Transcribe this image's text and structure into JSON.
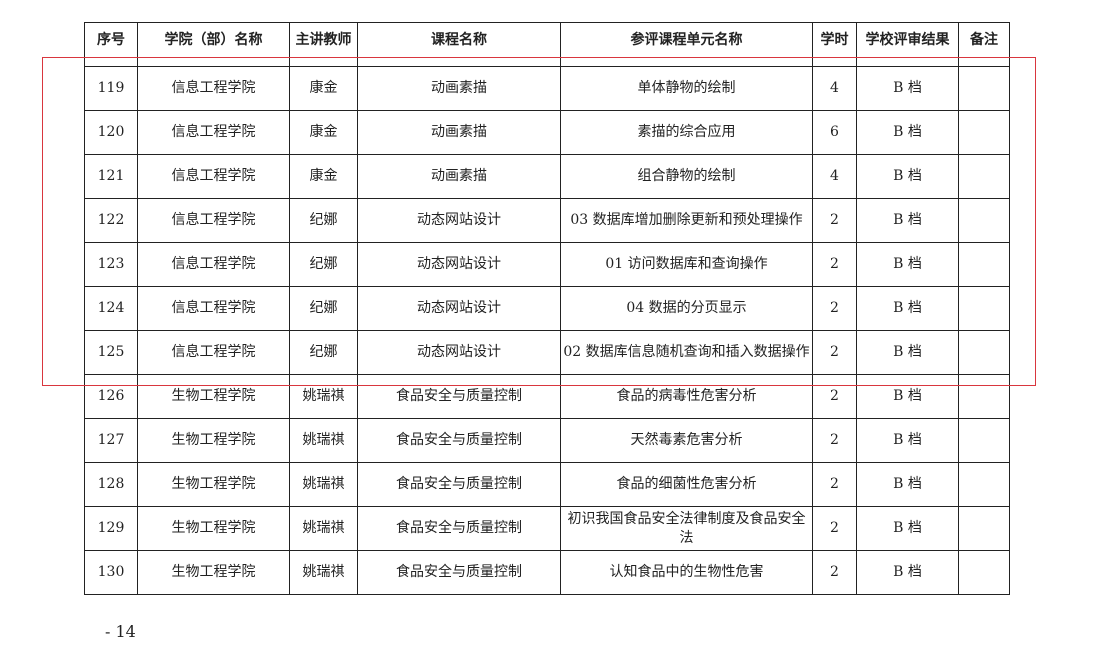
{
  "headers": [
    "序号",
    "学院（部）名称",
    "主讲教师",
    "课程名称",
    "参评课程单元名称",
    "学时",
    "学校评审结果",
    "备注"
  ],
  "rows": [
    [
      "119",
      "信息工程学院",
      "康金",
      "动画素描",
      "单体静物的绘制",
      "4",
      "B 档",
      ""
    ],
    [
      "120",
      "信息工程学院",
      "康金",
      "动画素描",
      "素描的综合应用",
      "6",
      "B 档",
      ""
    ],
    [
      "121",
      "信息工程学院",
      "康金",
      "动画素描",
      "组合静物的绘制",
      "4",
      "B 档",
      ""
    ],
    [
      "122",
      "信息工程学院",
      "纪娜",
      "动态网站设计",
      "03 数据库增加删除更新和预处理操作",
      "2",
      "B 档",
      ""
    ],
    [
      "123",
      "信息工程学院",
      "纪娜",
      "动态网站设计",
      "01 访问数据库和查询操作",
      "2",
      "B 档",
      ""
    ],
    [
      "124",
      "信息工程学院",
      "纪娜",
      "动态网站设计",
      "04 数据的分页显示",
      "2",
      "B 档",
      ""
    ],
    [
      "125",
      "信息工程学院",
      "纪娜",
      "动态网站设计",
      "02 数据库信息随机查询和插入数据操作",
      "2",
      "B 档",
      ""
    ],
    [
      "126",
      "生物工程学院",
      "姚瑞祺",
      "食品安全与质量控制",
      "食品的病毒性危害分析",
      "2",
      "B 档",
      ""
    ],
    [
      "127",
      "生物工程学院",
      "姚瑞祺",
      "食品安全与质量控制",
      "天然毒素危害分析",
      "2",
      "B 档",
      ""
    ],
    [
      "128",
      "生物工程学院",
      "姚瑞祺",
      "食品安全与质量控制",
      "食品的细菌性危害分析",
      "2",
      "B 档",
      ""
    ],
    [
      "129",
      "生物工程学院",
      "姚瑞祺",
      "食品安全与质量控制",
      "初识我国食品安全法律制度及食品安全法",
      "2",
      "B 档",
      ""
    ],
    [
      "130",
      "生物工程学院",
      "姚瑞祺",
      "食品安全与质量控制",
      "认知食品中的生物性危害",
      "2",
      "B 档",
      ""
    ]
  ],
  "page_number": "- 14",
  "highlight_color": "#d9363e"
}
